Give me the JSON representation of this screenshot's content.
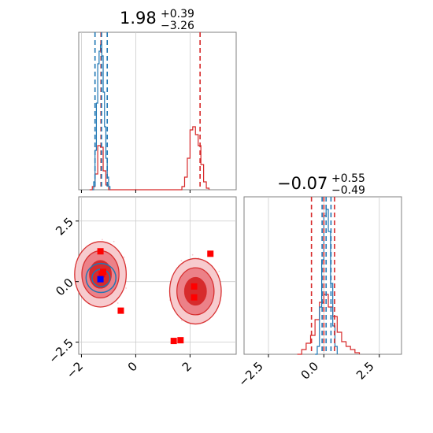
{
  "colors": {
    "red": "#d62728",
    "blue": "#1f77b4",
    "grid": "#cccccc",
    "frame": "#808080"
  },
  "chart_data": [
    {
      "type": "histogram",
      "panel": "top-left",
      "title": {
        "value": "1.98",
        "plus": "+0.39",
        "minus": "−3.26"
      },
      "xlim": [
        -2.1,
        3.7
      ],
      "grid": true,
      "series": [
        {
          "color": "red",
          "bins": [
            [
              -1.7,
              0.0
            ],
            [
              -1.6,
              0.02
            ],
            [
              -1.5,
              0.1
            ],
            [
              -1.4,
              0.28
            ],
            [
              -1.3,
              0.27
            ],
            [
              -1.2,
              0.12
            ],
            [
              -1.1,
              0.03
            ],
            [
              -1.0,
              0.0
            ],
            [
              1.6,
              0.0
            ],
            [
              1.7,
              0.02
            ],
            [
              1.8,
              0.08
            ],
            [
              1.9,
              0.2
            ],
            [
              2.0,
              0.38
            ],
            [
              2.1,
              0.4
            ],
            [
              2.2,
              0.35
            ],
            [
              2.3,
              0.28
            ],
            [
              2.4,
              0.16
            ],
            [
              2.5,
              0.05
            ],
            [
              2.6,
              0.01
            ],
            [
              2.7,
              0.0
            ]
          ],
          "vlines": [
            -1.28,
            2.37
          ]
        },
        {
          "color": "blue",
          "bins": [
            [
              -1.6,
              0.0
            ],
            [
              -1.55,
              0.05
            ],
            [
              -1.5,
              0.25
            ],
            [
              -1.45,
              0.55
            ],
            [
              -1.4,
              0.8
            ],
            [
              -1.35,
              0.88
            ],
            [
              -1.3,
              0.92
            ],
            [
              -1.25,
              0.85
            ],
            [
              -1.2,
              0.62
            ],
            [
              -1.15,
              0.4
            ],
            [
              -1.1,
              0.2
            ],
            [
              -1.05,
              0.08
            ],
            [
              -1.0,
              0.02
            ],
            [
              -0.95,
              0.0
            ]
          ],
          "vlines": [
            -1.5,
            -1.26,
            -1.05
          ]
        }
      ]
    },
    {
      "type": "histogram",
      "panel": "bottom-right",
      "title": {
        "value": "−0.07",
        "plus": "+0.55",
        "minus": "−0.49"
      },
      "xlim": [
        -3.6,
        3.5
      ],
      "xticks": [
        -2.5,
        0.0,
        2.5
      ],
      "xtick_labels": [
        "−2.5",
        "0.0",
        "2.5"
      ],
      "grid": true,
      "series": [
        {
          "color": "red",
          "bins": [
            [
              -1.2,
              0.0
            ],
            [
              -1.0,
              0.03
            ],
            [
              -0.8,
              0.07
            ],
            [
              -0.6,
              0.12
            ],
            [
              -0.4,
              0.22
            ],
            [
              -0.2,
              0.33
            ],
            [
              0.0,
              0.38
            ],
            [
              0.2,
              0.3
            ],
            [
              0.4,
              0.24
            ],
            [
              0.6,
              0.14
            ],
            [
              0.8,
              0.08
            ],
            [
              1.0,
              0.05
            ],
            [
              1.2,
              0.03
            ],
            [
              1.4,
              0.01
            ],
            [
              1.6,
              0.0
            ]
          ],
          "vlines": [
            -0.56,
            0.0,
            0.48
          ]
        },
        {
          "color": "blue",
          "bins": [
            [
              -0.4,
              0.0
            ],
            [
              -0.3,
              0.05
            ],
            [
              -0.2,
              0.3
            ],
            [
              -0.1,
              0.6
            ],
            [
              0.0,
              0.88
            ],
            [
              0.1,
              0.92
            ],
            [
              0.2,
              0.78
            ],
            [
              0.3,
              0.45
            ],
            [
              0.4,
              0.18
            ],
            [
              0.5,
              0.05
            ],
            [
              0.6,
              0.0
            ]
          ],
          "vlines": [
            -0.08,
            0.1,
            0.32
          ]
        }
      ]
    },
    {
      "type": "scatter",
      "panel": "bottom-left",
      "xlim": [
        -2.1,
        3.7
      ],
      "ylim": [
        -3.0,
        3.5
      ],
      "xticks": [
        -2,
        0,
        2
      ],
      "xtick_labels": [
        "−2",
        "0",
        "2"
      ],
      "yticks": [
        -2.5,
        0.0,
        2.5
      ],
      "ytick_labels": [
        "−2.5",
        "0.0",
        "2.5"
      ],
      "grid": true,
      "red_contour_centers": [
        [
          -1.3,
          0.3
        ],
        [
          2.2,
          -0.4
        ]
      ],
      "blue_contour_center": [
        -1.28,
        0.15
      ],
      "red_points": [
        [
          -1.3,
          1.25
        ],
        [
          -1.2,
          0.4
        ],
        [
          -1.25,
          0.3
        ],
        [
          -0.55,
          -1.2
        ],
        [
          2.15,
          -0.2
        ],
        [
          2.15,
          -0.65
        ],
        [
          2.75,
          1.15
        ],
        [
          1.4,
          -2.45
        ],
        [
          1.65,
          -2.42
        ]
      ],
      "blue_points": [
        [
          -1.3,
          0.1
        ]
      ]
    }
  ]
}
